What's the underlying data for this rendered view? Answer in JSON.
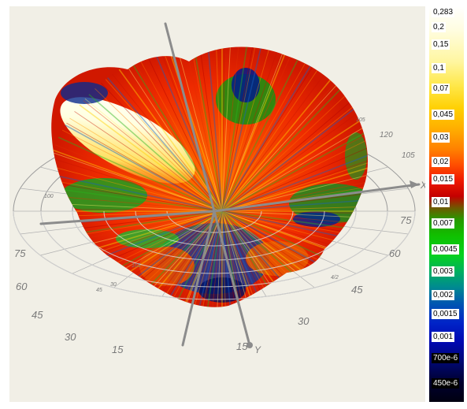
{
  "chart_data": {
    "type": "polar-surface-3d",
    "title": "",
    "axis_labels": {
      "x": "X",
      "y": "Y"
    },
    "front_ring_labels": [
      "75",
      "60",
      "45",
      "30",
      "15",
      "15"
    ],
    "left_ring_labels": [
      "75",
      "60",
      "45",
      "30"
    ],
    "right_ring_labels": [
      "120",
      "105",
      "75",
      "60",
      "45",
      "30"
    ],
    "inner_ring_labels": [
      "105",
      "45",
      "30",
      "100",
      "165",
      "4/2"
    ],
    "legend": {
      "labels": [
        "0,283",
        "0,2",
        "0,15",
        "0,1",
        "0,07",
        "0,045",
        "0,03",
        "0,02",
        "0,015",
        "0,01",
        "0,007",
        "0,0045",
        "0,003",
        "0,002",
        "0,0015",
        "0,001",
        "700e-6",
        "450e-6"
      ],
      "values": [
        0.283,
        0.2,
        0.15,
        0.1,
        0.07,
        0.045,
        0.03,
        0.02,
        0.015,
        0.01,
        0.007,
        0.0045,
        0.003,
        0.002,
        0.0015,
        0.001,
        0.0007,
        0.00045
      ],
      "colors": {
        "max": "#ffffff",
        "high": "#ffe000",
        "mid_high": "#ff3000",
        "mid": "#10c000",
        "low": "#0024c8",
        "min": "#000010"
      }
    }
  }
}
